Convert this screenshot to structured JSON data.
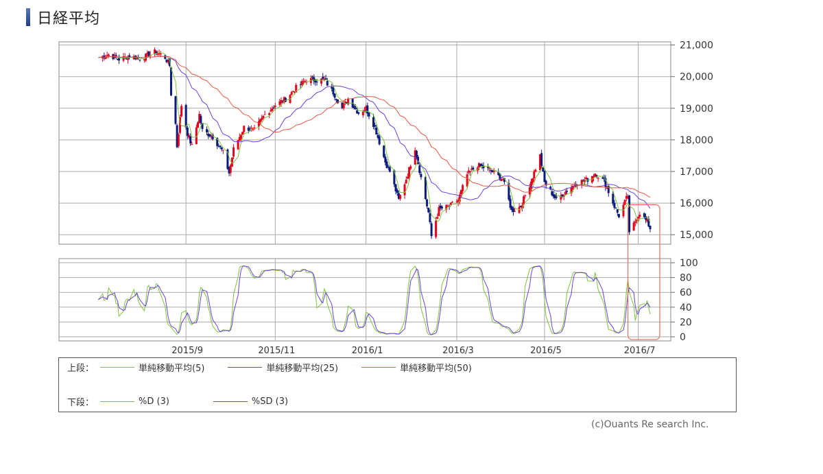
{
  "header": {
    "title": "日経平均",
    "accent": "#1f3f86"
  },
  "chart_data": [
    {
      "type": "candlestick",
      "panel": "upper",
      "y_ticks": [
        "21,000",
        "20,000",
        "19,000",
        "18,000",
        "17,000",
        "16,000",
        "15,000"
      ],
      "y_tick_values": [
        21000,
        20000,
        19000,
        18000,
        17000,
        16000,
        15000
      ],
      "ylim": [
        14700,
        21100
      ],
      "x_ticks": [
        "2015/9",
        "2015/11",
        "2016/1",
        "2016/3",
        "2016/5",
        "2016/7"
      ],
      "x_range": [
        "2015-07-02",
        "2016-07-08"
      ],
      "grid": true,
      "up_color": "#e8001c",
      "down_color": "#0a1a7a",
      "price_path": [
        [
          "2015-07-03",
          20600
        ],
        [
          "2015-07-10",
          20700
        ],
        [
          "2015-07-17",
          20550
        ],
        [
          "2015-07-24",
          20650
        ],
        [
          "2015-07-31",
          20580
        ],
        [
          "2015-08-07",
          20700
        ],
        [
          "2015-08-11",
          20800
        ],
        [
          "2015-08-17",
          20600
        ],
        [
          "2015-08-20",
          20350
        ],
        [
          "2015-08-21",
          19450
        ],
        [
          "2015-08-24",
          18500
        ],
        [
          "2015-08-25",
          17800
        ],
        [
          "2015-08-28",
          19100
        ],
        [
          "2015-09-01",
          18200
        ],
        [
          "2015-09-04",
          17800
        ],
        [
          "2015-09-09",
          18800
        ],
        [
          "2015-09-11",
          18300
        ],
        [
          "2015-09-18",
          18100
        ],
        [
          "2015-09-25",
          17600
        ],
        [
          "2015-09-29",
          16950
        ],
        [
          "2015-10-02",
          17700
        ],
        [
          "2015-10-09",
          18400
        ],
        [
          "2015-10-16",
          18300
        ],
        [
          "2015-10-23",
          18800
        ],
        [
          "2015-10-30",
          19100
        ],
        [
          "2015-11-06",
          19300
        ],
        [
          "2015-11-13",
          19650
        ],
        [
          "2015-11-20",
          19900
        ],
        [
          "2015-11-27",
          19900
        ],
        [
          "2015-12-02",
          19900
        ],
        [
          "2015-12-08",
          19500
        ],
        [
          "2015-12-14",
          19000
        ],
        [
          "2015-12-18",
          19300
        ],
        [
          "2015-12-25",
          18850
        ],
        [
          "2015-12-30",
          19000
        ],
        [
          "2016-01-05",
          18400
        ],
        [
          "2016-01-12",
          17300
        ],
        [
          "2016-01-15",
          17000
        ],
        [
          "2016-01-21",
          16100
        ],
        [
          "2016-01-27",
          16900
        ],
        [
          "2016-02-01",
          17750
        ],
        [
          "2016-02-05",
          16800
        ],
        [
          "2016-02-10",
          15700
        ],
        [
          "2016-02-12",
          14950
        ],
        [
          "2016-02-17",
          15800
        ],
        [
          "2016-02-24",
          15900
        ],
        [
          "2016-03-01",
          16100
        ],
        [
          "2016-03-07",
          16900
        ],
        [
          "2016-03-14",
          17200
        ],
        [
          "2016-03-22",
          17050
        ],
        [
          "2016-03-31",
          16750
        ],
        [
          "2016-04-06",
          15750
        ],
        [
          "2016-04-12",
          15900
        ],
        [
          "2016-04-19",
          16700
        ],
        [
          "2016-04-25",
          17500
        ],
        [
          "2016-04-28",
          16650
        ],
        [
          "2016-05-06",
          16100
        ],
        [
          "2016-05-13",
          16400
        ],
        [
          "2016-05-20",
          16650
        ],
        [
          "2016-05-27",
          16750
        ],
        [
          "2016-06-01",
          16950
        ],
        [
          "2016-06-07",
          16700
        ],
        [
          "2016-06-14",
          15900
        ],
        [
          "2016-06-17",
          15600
        ],
        [
          "2016-06-23",
          16250
        ],
        [
          "2016-06-24",
          15000
        ],
        [
          "2016-06-29",
          15550
        ],
        [
          "2016-07-01",
          15700
        ],
        [
          "2016-07-06",
          15400
        ],
        [
          "2016-07-08",
          15200
        ]
      ],
      "series": [
        {
          "name": "単純移動平均(5)",
          "color": "#7dc43c",
          "window": 5
        },
        {
          "name": "単純移動平均(25)",
          "color": "#6a3fe0",
          "window": 25
        },
        {
          "name": "単純移動平均(50)",
          "color": "#e8563f",
          "window": 50
        }
      ]
    },
    {
      "type": "line",
      "panel": "lower",
      "y_ticks": [
        "100",
        "80",
        "60",
        "40",
        "20",
        "0"
      ],
      "y_tick_values": [
        100,
        80,
        60,
        40,
        20,
        0
      ],
      "ylim": [
        0,
        100
      ],
      "grid": true,
      "series": [
        {
          "name": "%D (3)",
          "color": "#7dc43c"
        },
        {
          "name": "%SD (3)",
          "color": "#6a3fe0"
        }
      ]
    }
  ],
  "highlight": {
    "color": "#e8705a",
    "range": [
      "2016-06-24",
      "2016-07-08"
    ]
  },
  "legend": {
    "upper_label": "上段：",
    "lower_label": "下段：",
    "upper_items": [
      {
        "label": "単純移動平均(5)",
        "color": "#7dc43c"
      },
      {
        "label": "単純移動平均(25)",
        "color": "#6a3fe0"
      },
      {
        "label": "単純移動平均(50)",
        "color": "#e8563f"
      }
    ],
    "lower_items": [
      {
        "label": "%D (3)",
        "color": "#7dc43c"
      },
      {
        "label": "%SD (3)",
        "color": "#6a3fe0"
      }
    ]
  },
  "credit": "(c)Ouants Re search Inc."
}
